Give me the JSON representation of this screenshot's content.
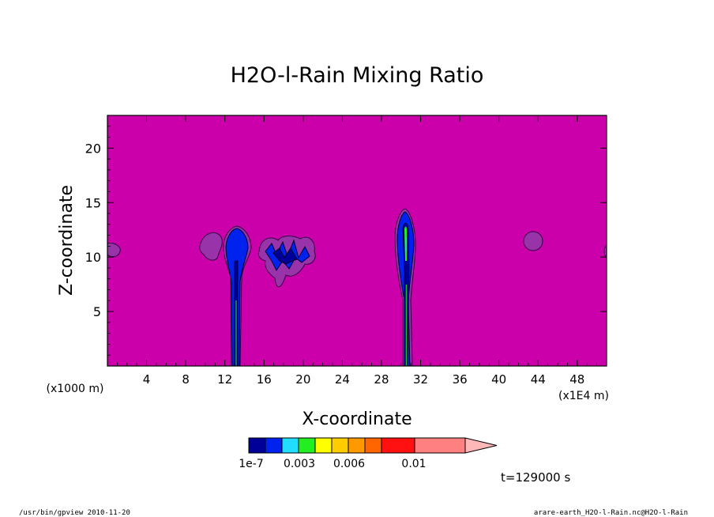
{
  "chart_data": {
    "type": "contour",
    "title": "H2O-l-Rain Mixing Ratio",
    "xlabel": "X-coordinate",
    "ylabel": "Z-coordinate",
    "x_unit_left": "(x1000 m)",
    "x_unit_right": "(x1E4 m)",
    "xlim": [
      0,
      51
    ],
    "ylim": [
      0,
      23
    ],
    "x_ticks": [
      4,
      8,
      12,
      16,
      20,
      24,
      28,
      32,
      36,
      40,
      44,
      48
    ],
    "y_ticks": [
      5,
      10,
      15,
      20
    ],
    "background_color": "#cc00aa",
    "colorbar": {
      "colors": [
        "#000099",
        "#0022ee",
        "#22ddff",
        "#22ee22",
        "#ffff00",
        "#ffcc00",
        "#ff9900",
        "#ff6600",
        "#ff1111",
        "#ff8080"
      ],
      "tick_labels": [
        "1e-7",
        "0.003",
        "0.006",
        "0.01"
      ],
      "extend_color": "#ffb8b8"
    },
    "features": [
      {
        "kind": "column",
        "x": 13.2,
        "z_top": 12.7,
        "core_top": 9.5
      },
      {
        "kind": "column",
        "x": 30.5,
        "z_top": 14.0,
        "core_top": 11.0
      },
      {
        "kind": "blob",
        "x": 0.7,
        "z": 10.5
      },
      {
        "kind": "blob",
        "x": 10.6,
        "z": 10.8
      },
      {
        "kind": "blob",
        "x": 43.6,
        "z": 11.2
      },
      {
        "kind": "cluster",
        "x": 18.5,
        "z": 10.0
      }
    ]
  },
  "annotation": {
    "time": "t=129000 s"
  },
  "footer": {
    "left": "/usr/bin/gpview  2010-11-20",
    "right": "arare-earth_H2O-l-Rain.nc@H2O-l-Rain"
  }
}
